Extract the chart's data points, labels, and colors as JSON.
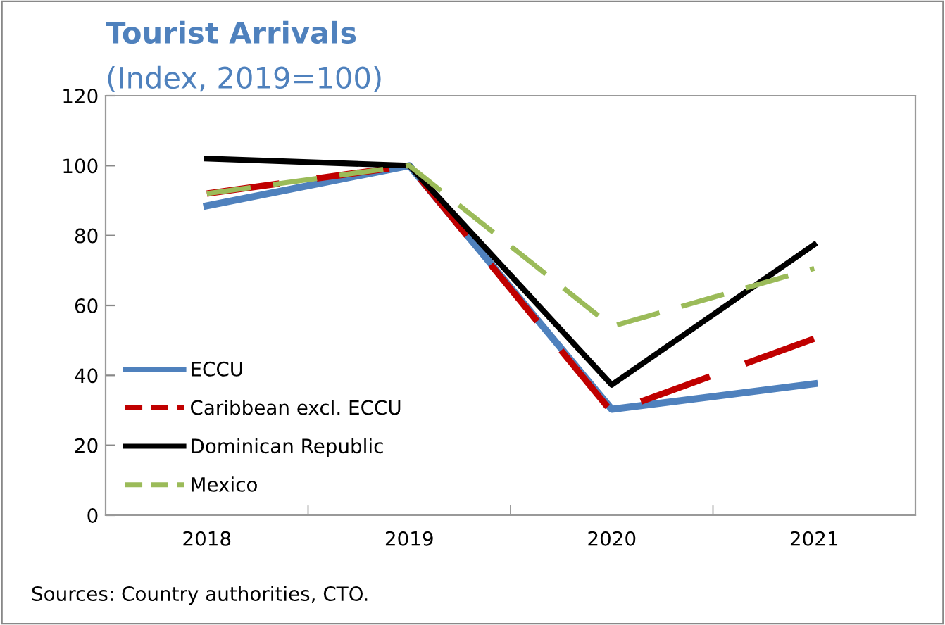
{
  "chart_data": {
    "type": "line",
    "title": "Tourist Arrivals",
    "subtitle": "(Index, 2019=100)",
    "categories": [
      "2018",
      "2019",
      "2020",
      "2021"
    ],
    "series": [
      {
        "name": "ECCU",
        "color": "#4f81bd",
        "values": [
          88.5,
          100,
          30.3,
          37.6
        ],
        "line_style": "solid"
      },
      {
        "name": "Caribbean excl. ECCU",
        "color": "#c00000",
        "values": [
          92,
          100,
          29.5,
          50.5
        ],
        "line_style": "dashed"
      },
      {
        "name": "Dominican Republic",
        "color": "#000000",
        "values": [
          102,
          100,
          37.3,
          77.4
        ],
        "line_style": "solid"
      },
      {
        "name": "Mexico",
        "color": "#9bbb59",
        "values": [
          92,
          100,
          54,
          70.6
        ],
        "line_style": "dashed"
      }
    ],
    "ylim": [
      0,
      120
    ],
    "yticks": [
      0,
      20,
      40,
      60,
      80,
      100,
      120
    ],
    "grid": false,
    "legend": "bottom left",
    "marker": "none",
    "annotations": [
      "Sources: Country authorities, CTO."
    ]
  }
}
